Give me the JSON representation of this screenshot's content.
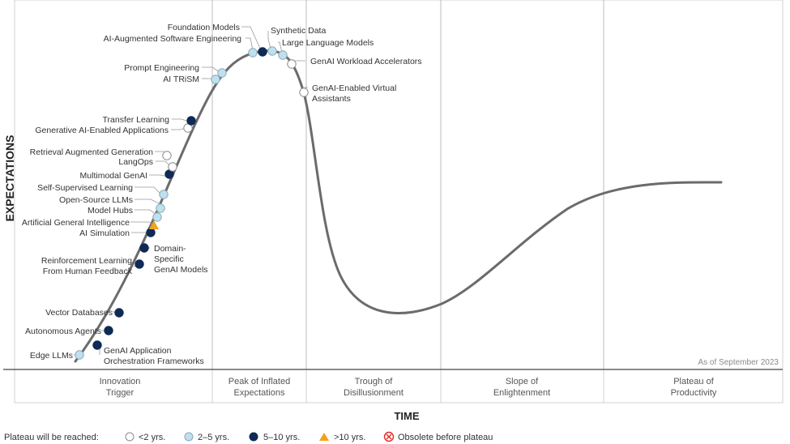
{
  "y_axis_label": "EXPECTATIONS",
  "x_axis_label": "TIME",
  "as_of": "As of September 2023",
  "phases": [
    [
      "Innovation",
      "Trigger"
    ],
    [
      "Peak of Inflated",
      "Expectations"
    ],
    [
      "Trough of",
      "Disillusionment"
    ],
    [
      "Slope of",
      "Enlightenment"
    ],
    [
      "Plateau of",
      "Productivity"
    ]
  ],
  "legend": {
    "title": "Plateau will be reached:",
    "items": [
      {
        "key": "lt2",
        "label": "<2 yrs."
      },
      {
        "key": "2to5",
        "label": "2–5 yrs."
      },
      {
        "key": "5to10",
        "label": "5–10 yrs."
      },
      {
        "key": "gt10",
        "label": ">10 yrs."
      },
      {
        "key": "obsolete",
        "label": "Obsolete before plateau"
      }
    ]
  },
  "colors": {
    "lt2": "#ffffff",
    "2to5": "#bfe0ee",
    "5to10": "#0f2a55",
    "gt10": "#f2a21c",
    "obsolete": "#e02b2b",
    "curve": "#6b6b6b",
    "grid": "#bdbdbd"
  },
  "chart_data": {
    "type": "scatter",
    "x_label": "TIME",
    "y_label": "EXPECTATIONS",
    "technologies": [
      {
        "name": "Edge LLMs",
        "horizon": "2to5"
      },
      {
        "name": "GenAI Application Orchestration Frameworks",
        "horizon": "5to10"
      },
      {
        "name": "Autonomous Agents",
        "horizon": "5to10"
      },
      {
        "name": "Vector Databases",
        "horizon": "5to10"
      },
      {
        "name": "Reinforcement Learning From Human Feedback",
        "horizon": "5to10"
      },
      {
        "name": "Domain-Specific GenAI Models",
        "horizon": "5to10"
      },
      {
        "name": "AI Simulation",
        "horizon": "5to10"
      },
      {
        "name": "Artificial General Intelligence",
        "horizon": "gt10"
      },
      {
        "name": "Model Hubs",
        "horizon": "2to5"
      },
      {
        "name": "Open-Source LLMs",
        "horizon": "2to5"
      },
      {
        "name": "Self-Supervised Learning",
        "horizon": "2to5"
      },
      {
        "name": "Multimodal GenAI",
        "horizon": "5to10"
      },
      {
        "name": "LangOps",
        "horizon": "lt2"
      },
      {
        "name": "Retrieval Augmented Generation",
        "horizon": "lt2"
      },
      {
        "name": "Generative AI-Enabled Applications",
        "horizon": "lt2"
      },
      {
        "name": "Transfer Learning",
        "horizon": "5to10"
      },
      {
        "name": "AI TRiSM",
        "horizon": "2to5"
      },
      {
        "name": "Prompt Engineering",
        "horizon": "2to5"
      },
      {
        "name": "AI-Augmented Software Engineering",
        "horizon": "2to5"
      },
      {
        "name": "Foundation Models",
        "horizon": "5to10"
      },
      {
        "name": "Synthetic Data",
        "horizon": "2to5"
      },
      {
        "name": "Large Language Models",
        "horizon": "2to5"
      },
      {
        "name": "GenAI Workload Accelerators",
        "horizon": "lt2"
      },
      {
        "name": "GenAI-Enabled Virtual Assistants",
        "horizon": "lt2"
      }
    ]
  }
}
